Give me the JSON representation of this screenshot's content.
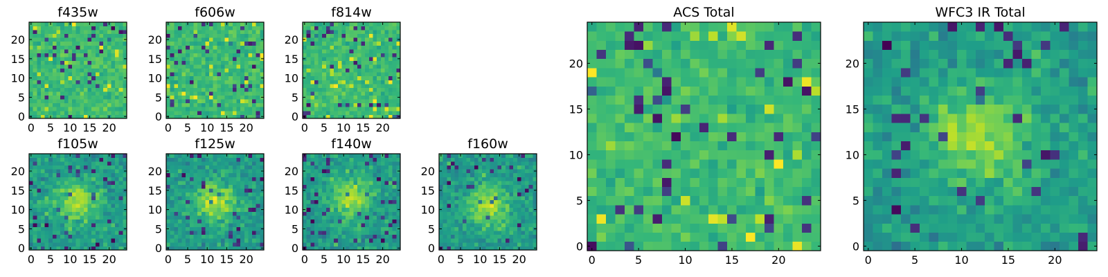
{
  "chart_data": [
    {
      "type": "heatmap",
      "title": "f435w",
      "grid_size": 25,
      "colormap": "viridis",
      "xticks": [
        0,
        5,
        10,
        15,
        20
      ],
      "yticks": [
        0,
        5,
        10,
        15,
        20
      ],
      "xlim": [
        -0.5,
        24.5
      ],
      "ylim": [
        -0.5,
        24.5
      ],
      "structure": "noise",
      "seed": 11
    },
    {
      "type": "heatmap",
      "title": "f606w",
      "grid_size": 25,
      "colormap": "viridis",
      "xticks": [
        0,
        5,
        10,
        15,
        20
      ],
      "yticks": [
        0,
        5,
        10,
        15,
        20
      ],
      "xlim": [
        -0.5,
        24.5
      ],
      "ylim": [
        -0.5,
        24.5
      ],
      "structure": "noise",
      "seed": 23
    },
    {
      "type": "heatmap",
      "title": "f814w",
      "grid_size": 25,
      "colormap": "viridis",
      "xticks": [
        0,
        5,
        10,
        15,
        20
      ],
      "yticks": [
        0,
        5,
        10,
        15,
        20
      ],
      "xlim": [
        -0.5,
        24.5
      ],
      "ylim": [
        -0.5,
        24.5
      ],
      "structure": "noise",
      "seed": 37
    },
    {
      "type": "heatmap",
      "title": "f105w",
      "grid_size": 25,
      "colormap": "viridis",
      "xticks": [
        0,
        5,
        10,
        15,
        20
      ],
      "yticks": [
        0,
        5,
        10,
        15,
        20
      ],
      "xlim": [
        -0.5,
        24.5
      ],
      "ylim": [
        -0.5,
        24.5
      ],
      "structure": "central-source",
      "source_center": [
        12,
        12
      ],
      "seed": 41
    },
    {
      "type": "heatmap",
      "title": "f125w",
      "grid_size": 25,
      "colormap": "viridis",
      "xticks": [
        0,
        5,
        10,
        15,
        20
      ],
      "yticks": [
        0,
        5,
        10,
        15,
        20
      ],
      "xlim": [
        -0.5,
        24.5
      ],
      "ylim": [
        -0.5,
        24.5
      ],
      "structure": "central-source",
      "source_center": [
        12,
        12
      ],
      "seed": 53
    },
    {
      "type": "heatmap",
      "title": "f140w",
      "grid_size": 25,
      "colormap": "viridis",
      "xticks": [
        0,
        5,
        10,
        15,
        20
      ],
      "yticks": [
        0,
        5,
        10,
        15,
        20
      ],
      "xlim": [
        -0.5,
        24.5
      ],
      "ylim": [
        -0.5,
        24.5
      ],
      "structure": "central-source",
      "source_center": [
        12,
        13
      ],
      "seed": 67
    },
    {
      "type": "heatmap",
      "title": "f160w",
      "grid_size": 25,
      "colormap": "viridis",
      "xticks": [
        0,
        5,
        10,
        15,
        20
      ],
      "yticks": [
        0,
        5,
        10,
        15,
        20
      ],
      "xlim": [
        -0.5,
        24.5
      ],
      "ylim": [
        -0.5,
        24.5
      ],
      "structure": "central-source",
      "source_center": [
        12,
        11
      ],
      "seed": 79
    },
    {
      "type": "heatmap",
      "title": "ACS Total",
      "grid_size": 25,
      "colormap": "viridis",
      "xticks": [
        0,
        5,
        10,
        15,
        20
      ],
      "yticks": [
        0,
        5,
        10,
        15,
        20
      ],
      "xlim": [
        -0.5,
        24.5
      ],
      "ylim": [
        -0.5,
        24.5
      ],
      "structure": "noise",
      "seed": 97
    },
    {
      "type": "heatmap",
      "title": "WFC3 IR Total",
      "grid_size": 25,
      "colormap": "viridis",
      "xticks": [
        0,
        5,
        10,
        15,
        20
      ],
      "yticks": [
        0,
        5,
        10,
        15,
        20
      ],
      "xlim": [
        -0.5,
        24.5
      ],
      "ylim": [
        -0.5,
        24.5
      ],
      "structure": "central-source",
      "source_center": [
        12,
        12
      ],
      "seed": 113
    }
  ]
}
